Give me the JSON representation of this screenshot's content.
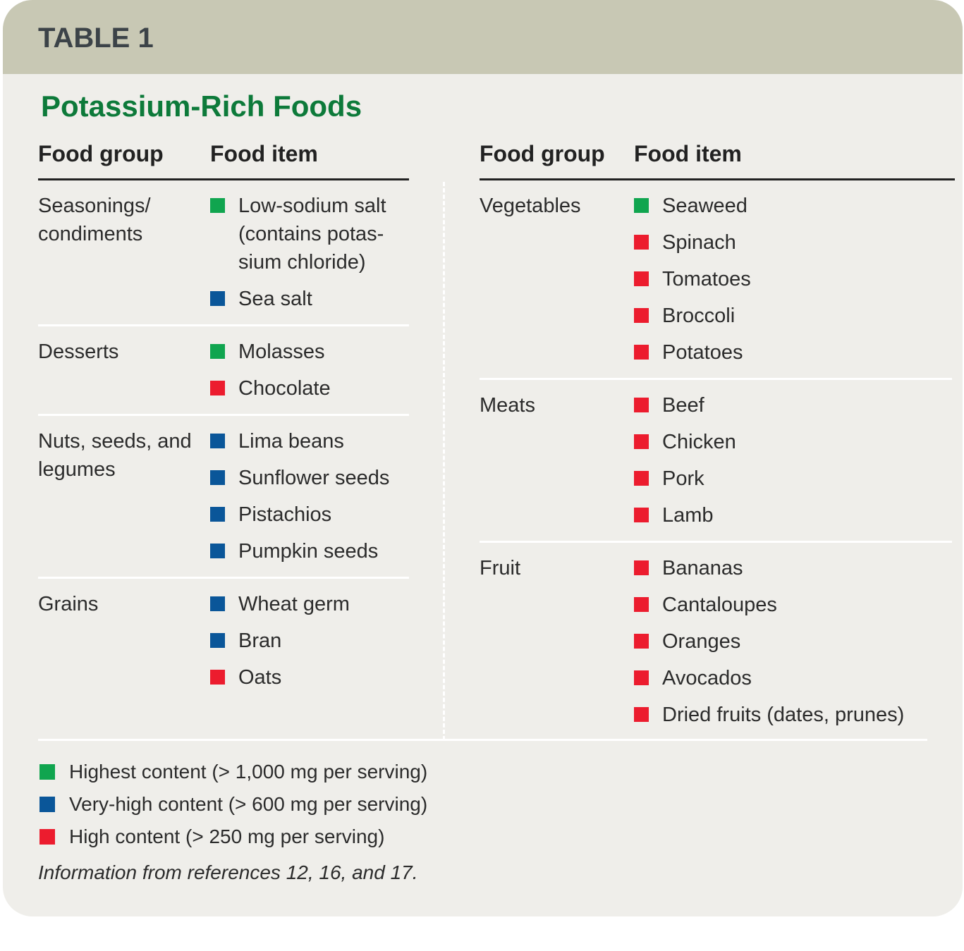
{
  "header": {
    "label": "TABLE 1",
    "title": "Potassium-Rich Foods"
  },
  "columns": [
    "Food group",
    "Food item"
  ],
  "legend": [
    {
      "label": "Highest content (> 1,000 mg per serving)",
      "color": "#10a54f"
    },
    {
      "label": "Very-high content (> 600 mg per serving)",
      "color": "#0a5699"
    },
    {
      "label": "High content (> 250 mg per serving)",
      "color": "#ec1c2e"
    }
  ],
  "left": [
    {
      "group": "Seasonings/ condiments",
      "items": [
        {
          "text": "Low-sodium salt (contains potas­sium chloride)",
          "level": 0
        },
        {
          "text": "Sea salt",
          "level": 1
        }
      ]
    },
    {
      "group": "Desserts",
      "items": [
        {
          "text": "Molasses",
          "level": 0
        },
        {
          "text": "Chocolate",
          "level": 2
        }
      ]
    },
    {
      "group": "Nuts, seeds, and legumes",
      "items": [
        {
          "text": "Lima beans",
          "level": 1
        },
        {
          "text": "Sunflower seeds",
          "level": 1
        },
        {
          "text": "Pistachios",
          "level": 1
        },
        {
          "text": "Pumpkin seeds",
          "level": 1
        }
      ]
    },
    {
      "group": "Grains",
      "items": [
        {
          "text": "Wheat germ",
          "level": 1
        },
        {
          "text": "Bran",
          "level": 1
        },
        {
          "text": "Oats",
          "level": 2
        }
      ]
    }
  ],
  "right": [
    {
      "group": "Vegetables",
      "items": [
        {
          "text": "Seaweed",
          "level": 0
        },
        {
          "text": "Spinach",
          "level": 2
        },
        {
          "text": "Tomatoes",
          "level": 2
        },
        {
          "text": "Broccoli",
          "level": 2
        },
        {
          "text": "Potatoes",
          "level": 2
        }
      ]
    },
    {
      "group": "Meats",
      "items": [
        {
          "text": "Beef",
          "level": 2
        },
        {
          "text": "Chicken",
          "level": 2
        },
        {
          "text": "Pork",
          "level": 2
        },
        {
          "text": "Lamb",
          "level": 2
        }
      ]
    },
    {
      "group": "Fruit",
      "items": [
        {
          "text": "Bananas",
          "level": 2
        },
        {
          "text": "Cantaloupes",
          "level": 2
        },
        {
          "text": "Oranges",
          "level": 2
        },
        {
          "text": "Avocados",
          "level": 2
        },
        {
          "text": "Dried fruits (dates, prunes)",
          "level": 2
        }
      ]
    }
  ],
  "source": "Information from references 12, 16, and 17."
}
